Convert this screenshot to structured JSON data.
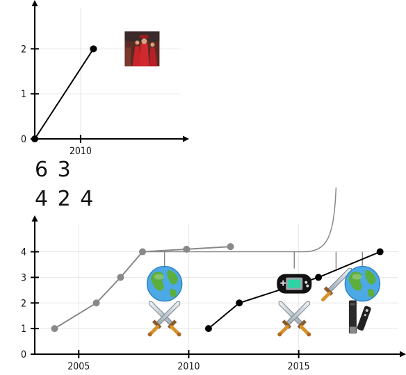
{
  "chart_data": [
    {
      "type": "line",
      "xlim": [
        2006.8,
        2017
      ],
      "ylim": [
        0,
        2.9
      ],
      "x_ticks": [
        {
          "value": 2010,
          "label": "2010"
        }
      ],
      "y_ticks": [
        {
          "value": 0,
          "label": "0"
        },
        {
          "value": 1,
          "label": "1"
        },
        {
          "value": 2,
          "label": "2"
        }
      ],
      "grid": true,
      "series": [
        {
          "color": "#000000",
          "points": [
            {
              "x": 2006.8,
              "y": 0
            },
            {
              "x": 2010.9,
              "y": 2
            }
          ]
        }
      ],
      "images": [
        {
          "icon": "photo-thumbnail",
          "x": 2014.3,
          "y": 2
        }
      ]
    },
    {
      "type": "line",
      "xlim": [
        2003,
        2019.5
      ],
      "ylim": [
        0,
        5.1
      ],
      "x_ticks": [
        {
          "value": 2005,
          "label": "2005"
        },
        {
          "value": 2010,
          "label": "2010"
        },
        {
          "value": 2015,
          "label": "2015"
        }
      ],
      "y_ticks": [
        {
          "value": 0,
          "label": "0"
        },
        {
          "value": 1,
          "label": "1"
        },
        {
          "value": 2,
          "label": "2"
        },
        {
          "value": 3,
          "label": "3"
        },
        {
          "value": 4,
          "label": "4"
        }
      ],
      "grid": true,
      "series": [
        {
          "color": "#888888",
          "points": [
            {
              "x": 2003.9,
              "y": 1
            },
            {
              "x": 2005.8,
              "y": 2
            },
            {
              "x": 2006.9,
              "y": 3
            },
            {
              "x": 2007.9,
              "y": 4
            },
            {
              "x": 2009.9,
              "y": 4.1
            },
            {
              "x": 2011.9,
              "y": 4.2
            }
          ]
        },
        {
          "color": "#000000",
          "points": [
            {
              "x": 2010.9,
              "y": 1
            },
            {
              "x": 2012.3,
              "y": 2
            },
            {
              "x": 2015.9,
              "y": 3
            },
            {
              "x": 2018.7,
              "y": 4
            }
          ]
        }
      ],
      "images": [
        {
          "icon": "globe-icon",
          "x": 2008.9,
          "y": 2.75
        },
        {
          "icon": "crossed-swords-icon",
          "x": 2008.9,
          "y": 1.45
        },
        {
          "icon": "handheld-console-icon",
          "x": 2014.8,
          "y": 2.75
        },
        {
          "icon": "crossed-swords-icon",
          "x": 2014.8,
          "y": 1.45
        },
        {
          "icon": "sword-icon",
          "x": 2016.7,
          "y": 2.75
        },
        {
          "icon": "globe-icon",
          "x": 2017.9,
          "y": 2.75
        },
        {
          "icon": "wii-controller-icon",
          "x": 2017.6,
          "y": 1.45
        }
      ]
    }
  ],
  "numbers": {
    "row1": "6 3",
    "row2": "4 2 4"
  }
}
